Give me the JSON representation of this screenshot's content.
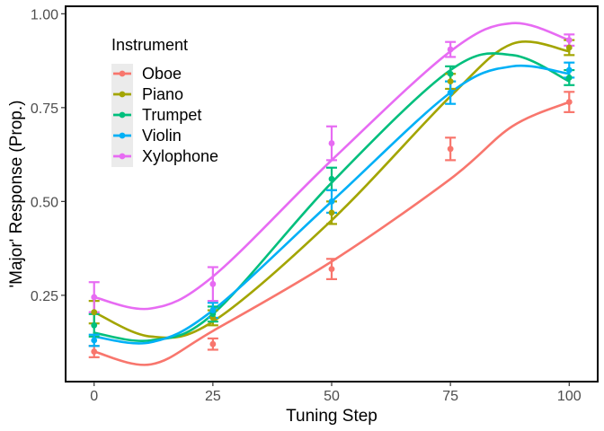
{
  "chart_data": {
    "type": "line",
    "title": "",
    "xlabel": "Tuning Step",
    "ylabel": "'Major' Response (Prop.)",
    "xlim": [
      -6,
      106
    ],
    "ylim": [
      0.02,
      1.02
    ],
    "x_ticks": [
      0,
      25,
      50,
      75,
      100
    ],
    "x_tick_labels": [
      "0",
      "25",
      "50",
      "75",
      "100"
    ],
    "y_ticks": [
      0.25,
      0.5,
      0.75,
      1.0
    ],
    "y_tick_labels": [
      "0.25",
      "0.50",
      "0.75",
      "1.00"
    ],
    "grid": false,
    "legend": {
      "title": "Instrument",
      "position": "top-left"
    },
    "x": [
      0,
      25,
      50,
      75,
      100
    ],
    "series": [
      {
        "name": "Oboe",
        "color": "#F8766D",
        "values": [
          0.1,
          0.12,
          0.32,
          0.64,
          0.765
        ],
        "error": [
          0.015,
          0.015,
          0.027,
          0.03,
          0.027
        ],
        "fit": [
          0.1,
          0.066,
          0.155,
          0.34,
          0.56,
          0.7,
          0.765
        ]
      },
      {
        "name": "Piano",
        "color": "#A3A500",
        "values": [
          0.205,
          0.19,
          0.47,
          0.82,
          0.91
        ],
        "error": [
          0.03,
          0.02,
          0.03,
          0.02,
          0.02
        ],
        "fit": [
          0.205,
          0.14,
          0.18,
          0.45,
          0.78,
          0.92,
          0.9
        ]
      },
      {
        "name": "Trumpet",
        "color": "#00BF7D",
        "values": [
          0.17,
          0.2,
          0.56,
          0.84,
          0.83
        ],
        "error": [
          0.03,
          0.02,
          0.03,
          0.02,
          0.02
        ],
        "fit": [
          0.15,
          0.13,
          0.2,
          0.55,
          0.85,
          0.89,
          0.82
        ]
      },
      {
        "name": "Violin",
        "color": "#00B0F6",
        "values": [
          0.13,
          0.21,
          0.5,
          0.79,
          0.85
        ],
        "error": [
          0.015,
          0.02,
          0.03,
          0.03,
          0.02
        ],
        "fit": [
          0.14,
          0.125,
          0.21,
          0.5,
          0.79,
          0.86,
          0.84
        ]
      },
      {
        "name": "Xylophone",
        "color": "#E76BF3",
        "values": [
          0.245,
          0.28,
          0.655,
          0.905,
          0.93
        ],
        "error": [
          0.04,
          0.045,
          0.045,
          0.02,
          0.015
        ],
        "fit": [
          0.245,
          0.215,
          0.3,
          0.61,
          0.9,
          0.975,
          0.93
        ]
      }
    ],
    "fit_x": [
      0,
      12,
      25,
      50,
      75,
      88,
      100
    ]
  }
}
